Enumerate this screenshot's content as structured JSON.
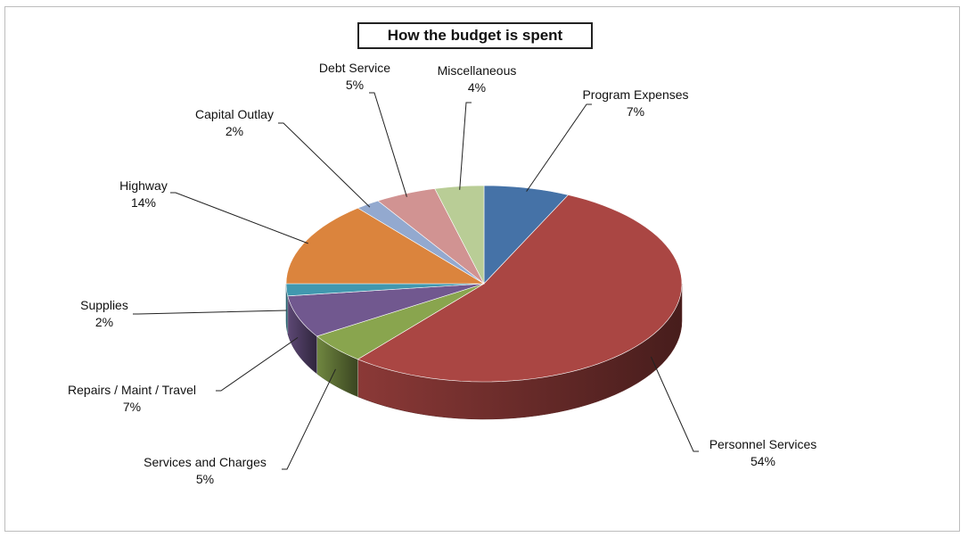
{
  "chart_data": {
    "type": "pie",
    "title": "How the budget is spent",
    "slices": [
      {
        "name": "Program Expenses",
        "percent_label": "7%",
        "value": 7,
        "color": "#4572a7"
      },
      {
        "name": "Personnel Services",
        "percent_label": "54%",
        "value": 54,
        "color": "#aa4643"
      },
      {
        "name": "Services and Charges",
        "percent_label": "5%",
        "value": 5,
        "color": "#89a54e"
      },
      {
        "name": "Repairs / Maint / Travel",
        "percent_label": "7%",
        "value": 7,
        "color": "#71588f"
      },
      {
        "name": "Supplies",
        "percent_label": "2%",
        "value": 2,
        "color": "#4198af"
      },
      {
        "name": "Highway",
        "percent_label": "14%",
        "value": 14,
        "color": "#db843d"
      },
      {
        "name": "Capital Outlay",
        "percent_label": "2%",
        "value": 2,
        "color": "#93a9cf"
      },
      {
        "name": "Debt Service",
        "percent_label": "5%",
        "value": 5,
        "color": "#d19392"
      },
      {
        "name": "Miscellaneous",
        "percent_label": "4%",
        "value": 4,
        "color": "#b9cd96"
      }
    ],
    "style": "3d-pie",
    "legend": "none",
    "data_labels": "outside-with-leader-lines"
  }
}
